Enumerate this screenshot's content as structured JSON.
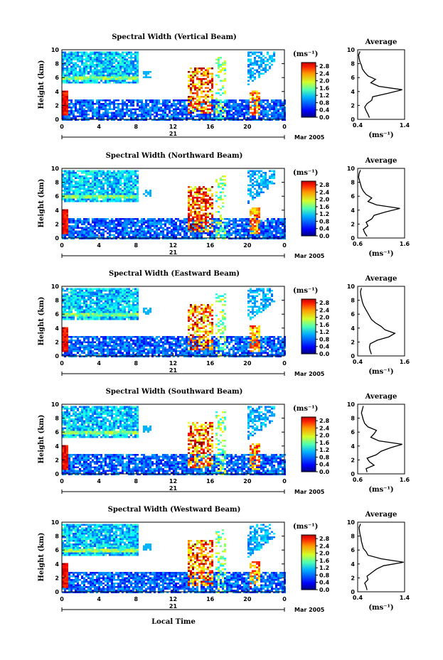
{
  "figure": {
    "xlabel_bottom": "Local Time",
    "date_label": "Mar 2005",
    "day_label": "21",
    "colorbar_unit": "(ms⁻¹)",
    "profile_title": "Average",
    "profile_xlabel": "(ms⁻¹)"
  },
  "chart_data": [
    {
      "type": "heatmap",
      "title": "Spectral Width (Vertical Beam)",
      "ylabel": "Height (km)",
      "x_ticks": [
        "0",
        "4",
        "8",
        "12",
        "16",
        "20",
        "0"
      ],
      "y_ticks": [
        "0",
        "2",
        "4",
        "6",
        "8",
        "10"
      ],
      "xlim_hours": [
        0,
        24
      ],
      "ylim_km": [
        0,
        10
      ],
      "colorbar_ticks": [
        "0.0",
        "0.4",
        "0.8",
        "1.2",
        "1.6",
        "2.0",
        "2.4",
        "2.8"
      ],
      "colorbar_range": [
        0,
        3.0
      ],
      "profile": {
        "title": "Average",
        "xlim": [
          0.4,
          1.4
        ],
        "x_ticks": [
          "0.4",
          "1.4"
        ],
        "heights_km": [
          0,
          0.5,
          1,
          1.5,
          2,
          2.5,
          3,
          3.5,
          4,
          4.5,
          5,
          5.5,
          6,
          6.5,
          7,
          7.5,
          8,
          8.5,
          9,
          9.5
        ],
        "values": [
          0.65,
          0.62,
          0.58,
          0.55,
          0.6,
          0.7,
          0.72,
          1.05,
          1.35,
          0.85,
          0.68,
          0.78,
          0.62,
          0.55,
          0.5,
          0.48,
          0.45,
          0.43,
          0.42,
          0.45
        ]
      }
    },
    {
      "type": "heatmap",
      "title": "Spectral Width (Northward Beam)",
      "ylabel": "Height (km)",
      "x_ticks": [
        "0",
        "4",
        "8",
        "12",
        "16",
        "20",
        "0"
      ],
      "y_ticks": [
        "0",
        "2",
        "4",
        "6",
        "8",
        "10"
      ],
      "xlim_hours": [
        0,
        24
      ],
      "ylim_km": [
        0,
        10
      ],
      "colorbar_ticks": [
        "0.0",
        "0.4",
        "0.8",
        "1.2",
        "1.6",
        "2.0",
        "2.4",
        "2.8"
      ],
      "colorbar_range": [
        0,
        3.0
      ],
      "profile": {
        "title": "Average",
        "xlim": [
          0.6,
          1.6
        ],
        "x_ticks": [
          "0.6",
          "1.6"
        ],
        "heights_km": [
          0,
          0.5,
          1,
          1.5,
          2,
          2.5,
          3,
          3.5,
          4,
          4.5,
          5,
          5.5,
          6,
          6.5,
          7,
          7.5,
          8,
          8.5,
          9,
          9.5
        ],
        "values": [
          0.8,
          0.75,
          0.72,
          0.82,
          0.78,
          0.9,
          0.95,
          1.2,
          1.5,
          1.0,
          0.82,
          0.9,
          0.78,
          0.72,
          0.68,
          0.66,
          0.64,
          0.62,
          0.63,
          0.66
        ]
      }
    },
    {
      "type": "heatmap",
      "title": "Spectral Width (Eastward Beam)",
      "ylabel": "Height (km)",
      "x_ticks": [
        "0",
        "4",
        "8",
        "12",
        "16",
        "20",
        "0"
      ],
      "y_ticks": [
        "0",
        "2",
        "4",
        "6",
        "8",
        "10"
      ],
      "xlim_hours": [
        0,
        24
      ],
      "ylim_km": [
        0,
        10
      ],
      "colorbar_ticks": [
        "0.0",
        "0.4",
        "0.8",
        "1.2",
        "1.6",
        "2.0",
        "2.4",
        "2.8"
      ],
      "colorbar_range": [
        0,
        3.0
      ],
      "profile": {
        "title": "Average",
        "xlim": [
          0.4,
          1.6
        ],
        "x_ticks": [
          "0.4",
          "1.6"
        ],
        "heights_km": [
          0,
          0.5,
          1,
          1.5,
          2,
          2.5,
          3,
          3.5,
          4,
          4.5,
          5,
          5.5,
          6,
          6.5,
          7,
          7.5,
          8,
          8.5,
          9,
          9.5
        ],
        "values": [
          0.75,
          0.72,
          0.7,
          0.72,
          0.9,
          1.2,
          1.35,
          1.1,
          1.0,
          0.85,
          0.75,
          0.7,
          0.65,
          0.6,
          0.55,
          0.52,
          0.5,
          0.48,
          0.47,
          0.5
        ]
      }
    },
    {
      "type": "heatmap",
      "title": "Spectral Width (Southward Beam)",
      "ylabel": "Height (km)",
      "x_ticks": [
        "0",
        "4",
        "8",
        "12",
        "16",
        "20",
        "0"
      ],
      "y_ticks": [
        "0",
        "2",
        "4",
        "6",
        "8",
        "10"
      ],
      "xlim_hours": [
        0,
        24
      ],
      "ylim_km": [
        0,
        10
      ],
      "colorbar_ticks": [
        "0.0",
        "0.4",
        "0.8",
        "1.2",
        "1.6",
        "2.0",
        "2.4",
        "2.8"
      ],
      "colorbar_range": [
        0,
        3.0
      ],
      "profile": {
        "title": "Average",
        "xlim": [
          0.6,
          1.6
        ],
        "x_ticks": [
          "0.6",
          "1.6"
        ],
        "heights_km": [
          0,
          0.5,
          1,
          1.5,
          2,
          2.5,
          3,
          3.5,
          4,
          4.5,
          5,
          5.5,
          6,
          6.5,
          7,
          7.5,
          8,
          8.5,
          9,
          9.5
        ],
        "values": [
          0.8,
          0.78,
          0.95,
          0.85,
          0.8,
          1.0,
          1.1,
          1.3,
          1.55,
          1.05,
          0.88,
          0.95,
          1.0,
          0.82,
          0.75,
          0.72,
          0.7,
          0.68,
          0.7,
          0.72
        ]
      }
    },
    {
      "type": "heatmap",
      "title": "Spectral Width (Westward Beam)",
      "ylabel": "Height (km)",
      "x_ticks": [
        "0",
        "4",
        "8",
        "12",
        "16",
        "20",
        "0"
      ],
      "y_ticks": [
        "0",
        "2",
        "4",
        "6",
        "8",
        "10"
      ],
      "xlim_hours": [
        0,
        24
      ],
      "ylim_km": [
        0,
        10
      ],
      "colorbar_ticks": [
        "0.0",
        "0.4",
        "0.8",
        "1.2",
        "1.6",
        "2.0",
        "2.4",
        "2.8"
      ],
      "colorbar_range": [
        0,
        3.0
      ],
      "profile": {
        "title": "Average",
        "xlim": [
          0.4,
          1.4
        ],
        "x_ticks": [
          "0.4",
          "1.4"
        ],
        "heights_km": [
          0,
          0.5,
          1,
          1.5,
          2,
          2.5,
          3,
          3.5,
          4,
          4.5,
          5,
          5.5,
          6,
          6.5,
          7,
          7.5,
          8,
          8.5,
          9,
          9.5
        ],
        "values": [
          0.6,
          0.58,
          0.55,
          0.62,
          0.6,
          0.7,
          0.8,
          0.95,
          1.38,
          0.9,
          0.62,
          0.58,
          0.52,
          0.5,
          0.48,
          0.47,
          0.45,
          0.44,
          0.43,
          0.46
        ]
      }
    }
  ]
}
